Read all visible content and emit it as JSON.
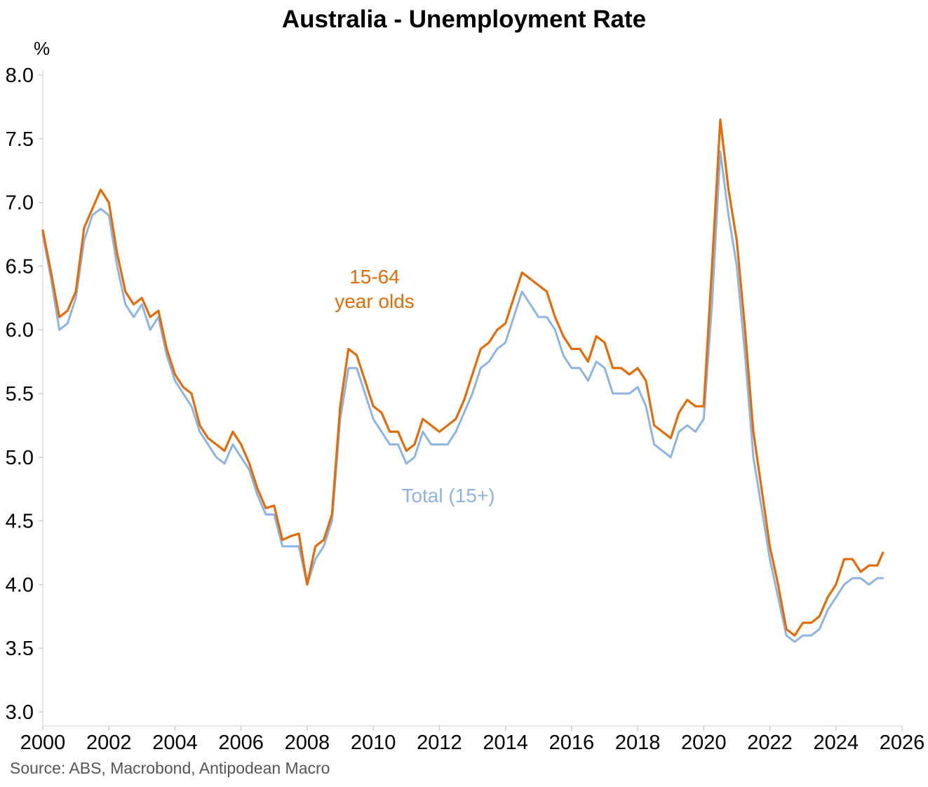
{
  "chart_data": {
    "type": "line",
    "title": "Australia - Unemployment Rate",
    "ylabel": "%",
    "xlabel": "",
    "xlim": [
      2000,
      2026
    ],
    "ylim": [
      3.0,
      8.0
    ],
    "x_ticks": [
      "2000",
      "2002",
      "2004",
      "2006",
      "2008",
      "2010",
      "2012",
      "2014",
      "2016",
      "2018",
      "2020",
      "2022",
      "2024",
      "2026"
    ],
    "y_ticks": [
      "3.0",
      "3.5",
      "4.0",
      "4.5",
      "5.0",
      "5.5",
      "6.0",
      "6.5",
      "7.0",
      "7.5",
      "8.0"
    ],
    "grid": false,
    "source": "Source: ABS, Macrobond, Antipodean Macro",
    "series": [
      {
        "name": "Total (15+)",
        "label_lines": [
          "Total (15+)"
        ],
        "color": "#8DB4E2",
        "x": [
          2000.0,
          2000.25,
          2000.5,
          2000.75,
          2001.0,
          2001.25,
          2001.5,
          2001.75,
          2002.0,
          2002.25,
          2002.5,
          2002.75,
          2003.0,
          2003.25,
          2003.5,
          2003.75,
          2004.0,
          2004.25,
          2004.5,
          2004.75,
          2005.0,
          2005.25,
          2005.5,
          2005.75,
          2006.0,
          2006.25,
          2006.5,
          2006.75,
          2007.0,
          2007.25,
          2007.5,
          2007.75,
          2008.0,
          2008.25,
          2008.5,
          2008.75,
          2009.0,
          2009.25,
          2009.5,
          2009.75,
          2010.0,
          2010.25,
          2010.5,
          2010.75,
          2011.0,
          2011.25,
          2011.5,
          2011.75,
          2012.0,
          2012.25,
          2012.5,
          2012.75,
          2013.0,
          2013.25,
          2013.5,
          2013.75,
          2014.0,
          2014.25,
          2014.5,
          2014.75,
          2015.0,
          2015.25,
          2015.5,
          2015.75,
          2016.0,
          2016.25,
          2016.5,
          2016.75,
          2017.0,
          2017.25,
          2017.5,
          2017.75,
          2018.0,
          2018.25,
          2018.5,
          2018.75,
          2019.0,
          2019.25,
          2019.5,
          2019.75,
          2020.0,
          2020.25,
          2020.5,
          2020.75,
          2021.0,
          2021.25,
          2021.5,
          2021.75,
          2022.0,
          2022.25,
          2022.5,
          2022.75,
          2023.0,
          2023.25,
          2023.5,
          2023.75,
          2024.0,
          2024.25,
          2024.5,
          2024.75,
          2025.0,
          2025.25,
          2025.42
        ],
        "values": [
          6.75,
          6.4,
          6.0,
          6.05,
          6.25,
          6.7,
          6.9,
          6.95,
          6.9,
          6.5,
          6.2,
          6.1,
          6.2,
          6.0,
          6.1,
          5.8,
          5.6,
          5.5,
          5.4,
          5.2,
          5.1,
          5.0,
          4.95,
          5.1,
          5.0,
          4.9,
          4.7,
          4.55,
          4.55,
          4.3,
          4.3,
          4.3,
          4.0,
          4.2,
          4.3,
          4.5,
          5.3,
          5.7,
          5.7,
          5.5,
          5.3,
          5.2,
          5.1,
          5.1,
          4.95,
          5.0,
          5.2,
          5.1,
          5.1,
          5.1,
          5.2,
          5.35,
          5.5,
          5.7,
          5.75,
          5.85,
          5.9,
          6.1,
          6.3,
          6.2,
          6.1,
          6.1,
          6.0,
          5.8,
          5.7,
          5.7,
          5.6,
          5.75,
          5.7,
          5.5,
          5.5,
          5.5,
          5.55,
          5.4,
          5.1,
          5.05,
          5.0,
          5.2,
          5.25,
          5.2,
          5.3,
          6.2,
          7.4,
          6.9,
          6.5,
          5.8,
          5.0,
          4.6,
          4.2,
          3.9,
          3.6,
          3.55,
          3.6,
          3.6,
          3.65,
          3.8,
          3.9,
          4.0,
          4.05,
          4.05,
          4.0,
          4.05,
          4.05
        ]
      },
      {
        "name": "15-64 year olds",
        "label_lines": [
          "15-64",
          "year olds"
        ],
        "color": "#E36C09",
        "x": [
          2000.0,
          2000.25,
          2000.5,
          2000.75,
          2001.0,
          2001.25,
          2001.5,
          2001.75,
          2002.0,
          2002.25,
          2002.5,
          2002.75,
          2003.0,
          2003.25,
          2003.5,
          2003.75,
          2004.0,
          2004.25,
          2004.5,
          2004.75,
          2005.0,
          2005.25,
          2005.5,
          2005.75,
          2006.0,
          2006.25,
          2006.5,
          2006.75,
          2007.0,
          2007.25,
          2007.5,
          2007.75,
          2008.0,
          2008.25,
          2008.5,
          2008.75,
          2009.0,
          2009.25,
          2009.5,
          2009.75,
          2010.0,
          2010.25,
          2010.5,
          2010.75,
          2011.0,
          2011.25,
          2011.5,
          2011.75,
          2012.0,
          2012.25,
          2012.5,
          2012.75,
          2013.0,
          2013.25,
          2013.5,
          2013.75,
          2014.0,
          2014.25,
          2014.5,
          2014.75,
          2015.0,
          2015.25,
          2015.5,
          2015.75,
          2016.0,
          2016.25,
          2016.5,
          2016.75,
          2017.0,
          2017.25,
          2017.5,
          2017.75,
          2018.0,
          2018.25,
          2018.5,
          2018.75,
          2019.0,
          2019.25,
          2019.5,
          2019.75,
          2020.0,
          2020.25,
          2020.5,
          2020.75,
          2021.0,
          2021.25,
          2021.5,
          2021.75,
          2022.0,
          2022.25,
          2022.5,
          2022.75,
          2023.0,
          2023.25,
          2023.5,
          2023.75,
          2024.0,
          2024.25,
          2024.5,
          2024.75,
          2025.0,
          2025.25,
          2025.42
        ],
        "values": [
          6.78,
          6.45,
          6.1,
          6.15,
          6.3,
          6.8,
          6.95,
          7.1,
          7.0,
          6.6,
          6.3,
          6.2,
          6.25,
          6.1,
          6.15,
          5.85,
          5.65,
          5.55,
          5.5,
          5.25,
          5.15,
          5.1,
          5.05,
          5.2,
          5.1,
          4.95,
          4.75,
          4.6,
          4.62,
          4.35,
          4.38,
          4.4,
          4.0,
          4.3,
          4.35,
          4.55,
          5.4,
          5.85,
          5.8,
          5.6,
          5.4,
          5.35,
          5.2,
          5.2,
          5.05,
          5.1,
          5.3,
          5.25,
          5.2,
          5.25,
          5.3,
          5.45,
          5.65,
          5.85,
          5.9,
          6.0,
          6.05,
          6.25,
          6.45,
          6.4,
          6.35,
          6.3,
          6.1,
          5.95,
          5.85,
          5.85,
          5.75,
          5.95,
          5.9,
          5.7,
          5.7,
          5.65,
          5.7,
          5.6,
          5.25,
          5.2,
          5.15,
          5.35,
          5.45,
          5.4,
          5.4,
          6.5,
          7.65,
          7.1,
          6.7,
          6.0,
          5.2,
          4.75,
          4.3,
          4.0,
          3.65,
          3.6,
          3.7,
          3.7,
          3.75,
          3.9,
          4.0,
          4.2,
          4.2,
          4.1,
          4.15,
          4.15,
          4.25
        ]
      }
    ]
  }
}
